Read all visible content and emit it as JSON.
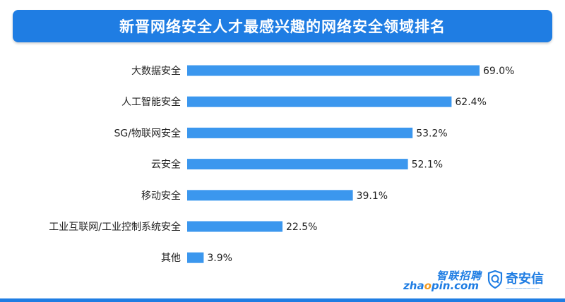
{
  "chart_data": {
    "type": "bar",
    "orientation": "horizontal",
    "title": "新晋网络安全人才最感兴趣的网络安全领域排名",
    "categories": [
      "大数据安全",
      "人工智能安全",
      "SG/物联网安全",
      "云安全",
      "移动安全",
      "工业互联网/工业控制系统安全",
      "其他"
    ],
    "values": [
      69.0,
      62.4,
      53.2,
      52.1,
      39.1,
      22.5,
      3.9
    ],
    "value_labels": [
      "69.0%",
      "62.4%",
      "53.2%",
      "52.1%",
      "39.1%",
      "22.5%",
      "3.9%"
    ],
    "unit": "%",
    "xlim": [
      0,
      69.0
    ],
    "grid": false,
    "legend": "none",
    "bar_color": "#3b97ee"
  },
  "colors": {
    "title_background": "#1f7de3",
    "bar": "#3b97ee",
    "brand_accent": "#f39a1e"
  },
  "logos": {
    "zhaopin_cn": "智联招聘",
    "zhaopin_en_1": "zha",
    "zhaopin_en_accent": "o",
    "zhaopin_en_2": "pin.com",
    "qax_name": "奇安信",
    "qax_icon": "shield-q-icon"
  }
}
